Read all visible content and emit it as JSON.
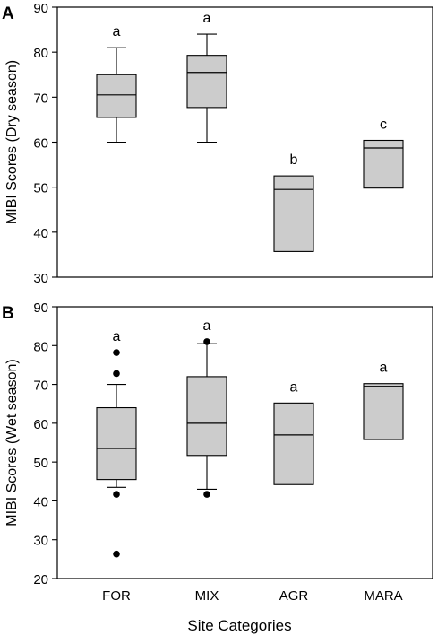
{
  "panels": [
    {
      "panel_label": "A",
      "chart_data": {
        "type": "box",
        "categories": [
          "FOR",
          "MIX",
          "AGR",
          "MARA"
        ],
        "ylabel": "MIBI Scores (Dry season)",
        "xlabel": "",
        "ylim": [
          30,
          90
        ],
        "yticks": [
          30,
          40,
          50,
          60,
          70,
          80,
          90
        ],
        "show_category_labels": false,
        "boxes": [
          {
            "category": "FOR",
            "whisker_low": 60,
            "q1": 65.5,
            "median": 70.5,
            "q3": 75,
            "whisker_high": 81,
            "outliers": [],
            "letter": "a"
          },
          {
            "category": "MIX",
            "whisker_low": 60,
            "q1": 67.7,
            "median": 75.5,
            "q3": 79.3,
            "whisker_high": 84,
            "outliers": [],
            "letter": "a"
          },
          {
            "category": "AGR",
            "whisker_low": null,
            "q1": 35.7,
            "median": 49.5,
            "q3": 52.5,
            "whisker_high": null,
            "outliers": [],
            "letter": "b"
          },
          {
            "category": "MARA",
            "whisker_low": null,
            "q1": 49.8,
            "median": 58.7,
            "q3": 60.4,
            "whisker_high": null,
            "outliers": [],
            "letter": "c"
          }
        ]
      }
    },
    {
      "panel_label": "B",
      "chart_data": {
        "type": "box",
        "categories": [
          "FOR",
          "MIX",
          "AGR",
          "MARA"
        ],
        "ylabel": "MIBI Scores (Wet season)",
        "xlabel": "Site Categories",
        "ylim": [
          20,
          90
        ],
        "yticks": [
          20,
          30,
          40,
          50,
          60,
          70,
          80,
          90
        ],
        "show_category_labels": true,
        "boxes": [
          {
            "category": "FOR",
            "whisker_low": 43.5,
            "q1": 45.5,
            "median": 53.5,
            "q3": 64,
            "whisker_high": 70,
            "outliers": [
              41.7,
              26.3,
              72.8,
              78.2
            ],
            "letter": "a"
          },
          {
            "category": "MIX",
            "whisker_low": 43,
            "q1": 51.7,
            "median": 60,
            "q3": 72,
            "whisker_high": 80.5,
            "outliers": [
              41.7,
              81
            ],
            "letter": "a"
          },
          {
            "category": "AGR",
            "whisker_low": null,
            "q1": 44.2,
            "median": 57,
            "q3": 65.2,
            "whisker_high": null,
            "outliers": [],
            "letter": "a"
          },
          {
            "category": "MARA",
            "whisker_low": null,
            "q1": 55.8,
            "median": 69.5,
            "q3": 70.2,
            "whisker_high": null,
            "outliers": [],
            "letter": "a"
          }
        ]
      }
    }
  ],
  "colors": {
    "box_fill": "#cccccc",
    "stroke": "#000000",
    "background": "#ffffff"
  }
}
